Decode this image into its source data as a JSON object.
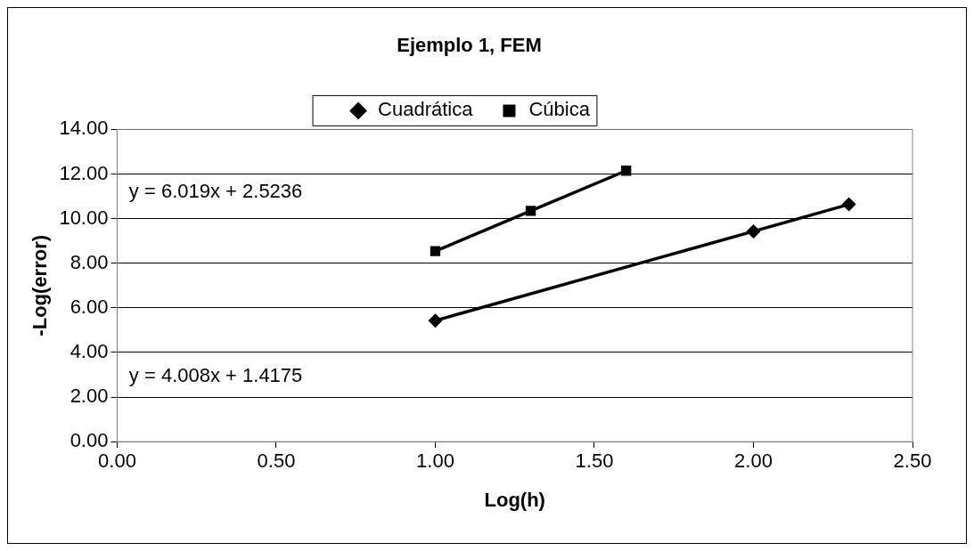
{
  "chart_data": {
    "type": "line",
    "title": "Ejemplo 1, FEM",
    "xlabel": "Log(h)",
    "ylabel": "-Log(error)",
    "series": [
      {
        "name": "Cuadrática",
        "color": "#000000",
        "marker": "diamond",
        "x": [
          1.0,
          2.0,
          2.3
        ],
        "values": [
          5.43,
          9.43,
          10.64
        ]
      },
      {
        "name": "Cúbica",
        "color": "#000000",
        "marker": "square",
        "x": [
          1.0,
          1.3,
          1.6
        ],
        "values": [
          8.54,
          10.35,
          12.15
        ]
      }
    ],
    "xlim": [
      0,
      2.5
    ],
    "xticks": [
      {
        "value": 0,
        "label": "0.00"
      },
      {
        "value": 0.5,
        "label": "0.50"
      },
      {
        "value": 1,
        "label": "1.00"
      },
      {
        "value": 1.5,
        "label": "1.50"
      },
      {
        "value": 2,
        "label": "2.00"
      },
      {
        "value": 2.5,
        "label": "2.50"
      }
    ],
    "ylim": [
      0,
      14
    ],
    "yticks": [
      {
        "value": 0,
        "label": "0.00"
      },
      {
        "value": 2,
        "label": "2.00"
      },
      {
        "value": 4,
        "label": "4.00"
      },
      {
        "value": 6,
        "label": "6.00"
      },
      {
        "value": 8,
        "label": "8.00"
      },
      {
        "value": 10,
        "label": "10.00"
      },
      {
        "value": 12,
        "label": "12.00"
      },
      {
        "value": 14,
        "label": "14.00"
      }
    ],
    "grid": "y",
    "legend": "top",
    "line_style": "solid",
    "annotations": [
      "y = 6.019x + 2.5236",
      "y = 4.008x + 1.4175"
    ]
  }
}
